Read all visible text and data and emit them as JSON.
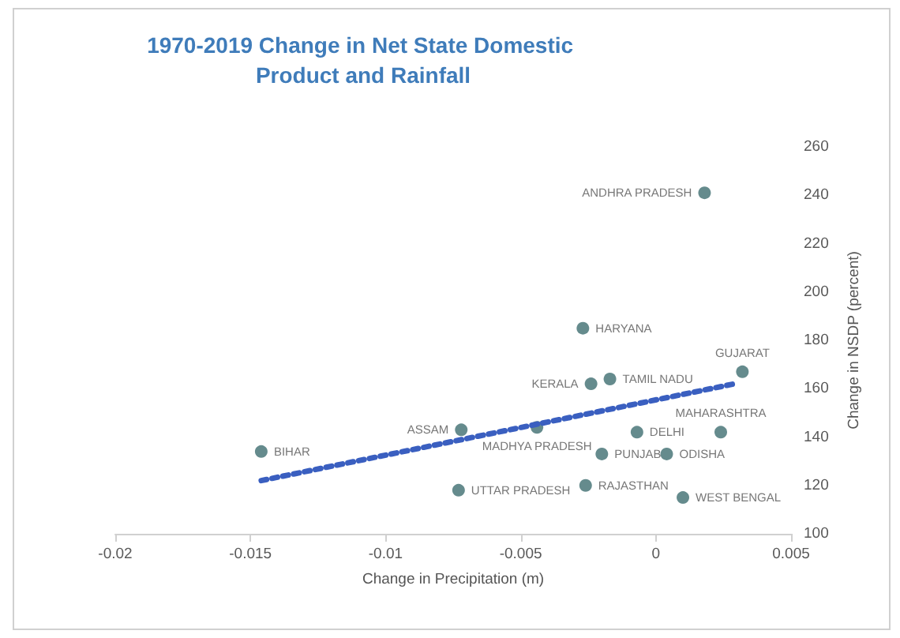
{
  "chart_data": {
    "type": "scatter",
    "title": "1970-2019 Change in Net State Domestic Product and Rainfall",
    "xlabel": "Change in Precipitation (m)",
    "ylabel": "Change in NSDP (percent)",
    "series": [
      {
        "color": "#3e6e70",
        "x": [
          0.0018,
          -0.0027,
          -0.0017,
          -0.0024,
          0.0032,
          -0.0044,
          -0.0072,
          -0.0007,
          0.0024,
          -0.002,
          0.0004,
          -0.0026,
          0.001,
          -0.0073,
          -0.0146
        ],
        "values": [
          241,
          185,
          164,
          162,
          167,
          144,
          143,
          142,
          142,
          133,
          133,
          120,
          115,
          118,
          134
        ]
      },
      {
        "type": "line",
        "color": "#3a5fc0",
        "line_style": "dotted",
        "marker": "none",
        "x": [
          -0.0146,
          0.0029
        ],
        "values": [
          122,
          162
        ]
      }
    ],
    "annotations": [
      {
        "text": "ANDHRA PRADESH",
        "x": 0.0018,
        "y": 241
      },
      {
        "text": "HARYANA",
        "x": -0.0027,
        "y": 185
      },
      {
        "text": "TAMIL NADU",
        "x": -0.0017,
        "y": 164
      },
      {
        "text": "KERALA",
        "x": -0.0024,
        "y": 162
      },
      {
        "text": "GUJARAT",
        "x": 0.0032,
        "y": 167
      },
      {
        "text": "MADHYA PRADESH",
        "x": -0.0044,
        "y": 144
      },
      {
        "text": "ASSAM",
        "x": -0.0072,
        "y": 143
      },
      {
        "text": "DELHI",
        "x": -0.0007,
        "y": 142
      },
      {
        "text": "MAHARASHTRA",
        "x": 0.0024,
        "y": 142
      },
      {
        "text": "PUNJAB",
        "x": -0.002,
        "y": 133
      },
      {
        "text": "ODISHA",
        "x": 0.0004,
        "y": 133
      },
      {
        "text": "RAJASTHAN",
        "x": -0.0026,
        "y": 120
      },
      {
        "text": "WEST BENGAL",
        "x": 0.001,
        "y": 115
      },
      {
        "text": "UTTAR PRADESH",
        "x": -0.0073,
        "y": 118
      },
      {
        "text": "BIHAR",
        "x": -0.0146,
        "y": 134
      }
    ],
    "xlim": [
      -0.02,
      0.005
    ],
    "xticks": [
      -0.02,
      -0.015,
      -0.01,
      -0.005,
      0,
      0.005
    ],
    "ylim": [
      100,
      260
    ],
    "yticks": [
      100,
      120,
      140,
      160,
      180,
      200,
      220,
      240,
      260
    ],
    "grid": false
  }
}
